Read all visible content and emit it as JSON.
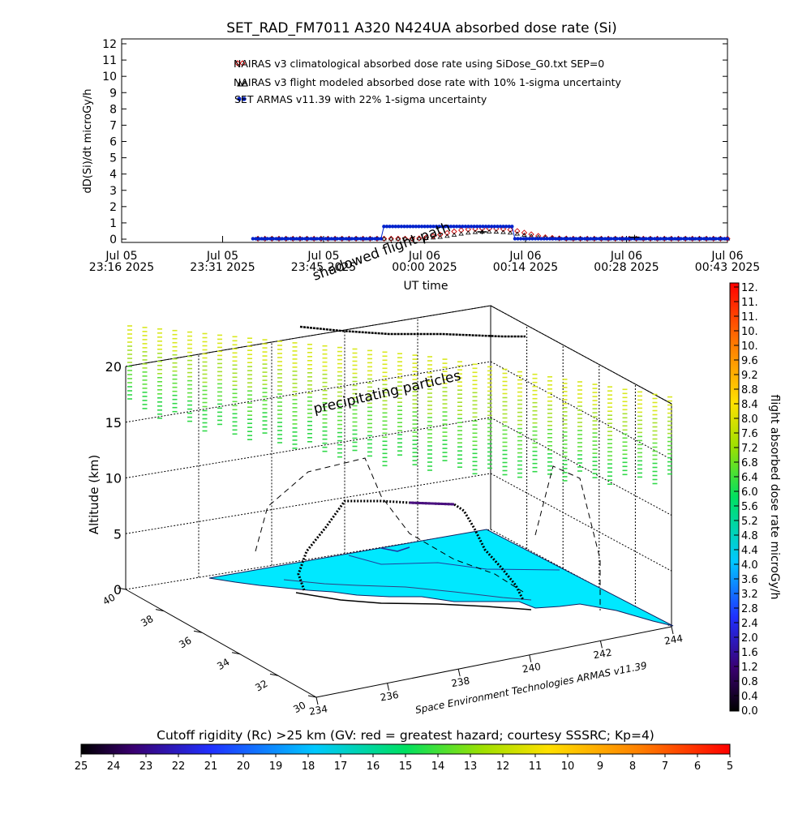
{
  "chart_data": [
    {
      "type": "scatter",
      "title": "SET_RAD_FM7011  A320 N424UA absorbed dose rate (Si)",
      "ylabel": "dD(Si)/dt microGy/h",
      "xlabel": "UT time",
      "ylim": [
        0,
        12
      ],
      "y_ticks": [
        "0",
        "1",
        "2",
        "3",
        "4",
        "5",
        "6",
        "7",
        "8",
        "9",
        "10",
        "11",
        "12"
      ],
      "x_ticks": [
        {
          "date": "Jul 05",
          "time": "23:16 2025"
        },
        {
          "date": "Jul 05",
          "time": "23:31 2025"
        },
        {
          "date": "Jul 05",
          "time": "23:45 2025"
        },
        {
          "date": "Jul 06",
          "time": "00:00 2025"
        },
        {
          "date": "Jul 06",
          "time": "00:14 2025"
        },
        {
          "date": "Jul 06",
          "time": "00:28 2025"
        },
        {
          "date": "Jul 06",
          "time": "00:43 2025"
        }
      ],
      "legend": [
        "NAIRAS v3 climatological absorbed dose rate using SiDose_G0.txt SEP=0",
        "NAIRAS v3 flight modeled absorbed dose rate with 10% 1-sigma uncertainty",
        "SET ARMAS v11.39 with 22% 1-sigma uncertainty"
      ],
      "legend_position": "top-center",
      "series": [
        {
          "name": "NAIRAS v3 climatological absorbed dose rate using SiDose_G0.txt SEP=0",
          "color": "#cc0000",
          "marker": "diamond",
          "x_range_ticks": [
            1.35,
            6.0
          ],
          "values": [
            0.03,
            0.03,
            0.03,
            0.03,
            0.03,
            0.03,
            0.03,
            0.03,
            0.03,
            0.03,
            0.03,
            0.03,
            0.03,
            0.03,
            0.03,
            0.03,
            0.03,
            0.03,
            0.03,
            0.03,
            0.03,
            0.03,
            0.03,
            0.05,
            0.1,
            0.18,
            0.28,
            0.38,
            0.47,
            0.55,
            0.6,
            0.63,
            0.65,
            0.65,
            0.64,
            0.62,
            0.58,
            0.5,
            0.4,
            0.3,
            0.2,
            0.12,
            0.08,
            0.05,
            0.04,
            0.03,
            0.03,
            0.03,
            0.03,
            0.03,
            0.03,
            0.03,
            0.03,
            0.03,
            0.03,
            0.03,
            0.03,
            0.03,
            0.03,
            0.03,
            0.03,
            0.03,
            0.03,
            0.03,
            0.03,
            0.03,
            0.03,
            0.03
          ]
        },
        {
          "name": "NAIRAS v3 flight modeled absorbed dose rate with 10% 1-sigma uncertainty",
          "color": "#000000",
          "marker": "triangle",
          "x_range_ticks": [
            1.35,
            6.0
          ],
          "values": [
            0.02,
            0.02,
            0.02,
            0.02,
            0.02,
            0.02,
            0.02,
            0.02,
            0.02,
            0.02,
            0.02,
            0.02,
            0.02,
            0.02,
            0.02,
            0.02,
            0.02,
            0.02,
            0.02,
            0.02,
            0.02,
            0.02,
            0.02,
            0.03,
            0.05,
            0.08,
            0.12,
            0.18,
            0.25,
            0.32,
            0.38,
            0.42,
            0.44,
            0.45,
            0.44,
            0.42,
            0.38,
            0.32,
            0.25,
            0.18,
            0.12,
            0.08,
            0.05,
            0.03,
            0.02,
            0.02,
            0.02,
            0.02,
            0.02,
            0.02,
            0.02,
            0.02,
            0.02,
            0.02,
            0.02,
            0.02,
            0.02,
            0.02,
            0.02,
            0.02,
            0.02,
            0.02,
            0.02,
            0.02,
            0.02,
            0.02,
            0.02,
            0.02
          ]
        },
        {
          "name": "SET ARMAS v11.39 with 22% 1-sigma uncertainty",
          "color": "#0022cc",
          "marker": "circle",
          "x_range_ticks": [
            1.3,
            6.0
          ],
          "values": [
            0.03,
            0.03,
            0.03,
            0.03,
            0.03,
            0.03,
            0.03,
            0.03,
            0.03,
            0.03,
            0.03,
            0.03,
            0.03,
            0.03,
            0.03,
            0.03,
            0.03,
            0.03,
            0.03,
            0.03,
            0.03,
            0.03,
            0.03,
            0.03,
            0.03,
            0.03,
            0.03,
            0.03,
            0.03,
            0.03,
            0.03,
            0.03,
            0.03,
            0.03,
            0.03,
            0.03,
            0.03,
            0.03,
            0.03,
            0.03,
            0.03,
            0.03,
            0.03,
            0.03,
            0.03,
            0.78,
            0.78,
            0.78,
            0.78,
            0.78,
            0.78,
            0.78,
            0.78,
            0.78,
            0.78,
            0.78,
            0.78,
            0.78,
            0.78,
            0.78,
            0.78,
            0.78,
            0.78,
            0.78,
            0.78,
            0.78,
            0.78,
            0.78,
            0.78,
            0.78,
            0.78,
            0.78,
            0.78,
            0.78,
            0.78,
            0.78,
            0.78,
            0.78,
            0.78,
            0.78,
            0.78,
            0.78,
            0.78,
            0.78,
            0.78,
            0.78,
            0.78,
            0.78,
            0.78,
            0.78,
            0.03,
            0.03,
            0.03,
            0.03,
            0.03,
            0.03,
            0.03,
            0.03,
            0.03,
            0.03,
            0.03,
            0.03,
            0.03,
            0.03,
            0.03,
            0.03,
            0.03,
            0.03,
            0.03,
            0.03,
            0.03,
            0.03,
            0.03,
            0.03,
            0.03,
            0.03,
            0.03,
            0.03,
            0.03,
            0.03,
            0.03,
            0.03,
            0.03,
            0.03,
            0.03,
            0.03,
            0.03,
            0.03,
            0.03,
            0.03,
            0.03,
            0.03,
            0.03,
            0.03,
            0.03,
            0.03,
            0.03,
            0.03,
            0.03,
            0.03,
            0.03,
            0.03,
            0.03,
            0.03,
            0.03,
            0.03,
            0.03,
            0.03,
            0.03,
            0.03,
            0.03,
            0.03,
            0.03,
            0.03,
            0.03,
            0.03,
            0.03,
            0.03,
            0.03,
            0.03,
            0.03,
            0.03,
            0.03,
            0.03
          ]
        }
      ],
      "error_markers": [
        {
          "x_tick": 3.57,
          "value": 0.45
        },
        {
          "x_tick": 5.08,
          "value": 0.12
        }
      ],
      "grid": false
    },
    {
      "type": "3d-scatter",
      "zlabel": "Altitude (km)",
      "z_ticks": [
        "0",
        "5",
        "10",
        "15",
        "20"
      ],
      "zlim": [
        0,
        20
      ],
      "lat_ticks": [
        "40",
        "38",
        "36",
        "34",
        "32",
        "30"
      ],
      "lon_ticks": [
        "234",
        "236",
        "238",
        "240",
        "242",
        "244"
      ],
      "annotations": {
        "precipitating": "precipitating particles",
        "shadowed": "shadowed flight path",
        "credit": "Space Environment Technologies ARMAS v11.39"
      },
      "grid": true
    }
  ],
  "colorbar_right": {
    "label": "flight absorbed dose rate microGy/h",
    "ticks": [
      "0.0",
      "0.4",
      "0.8",
      "1.2",
      "1.6",
      "2.0",
      "2.4",
      "2.8",
      "3.2",
      "3.6",
      "4.0",
      "4.4",
      "4.8",
      "5.2",
      "5.6",
      "6.0",
      "6.4",
      "6.8",
      "7.2",
      "7.6",
      "8.0",
      "8.4",
      "8.8",
      "9.2",
      "9.6",
      "10.",
      "10.",
      "11.",
      "11.",
      "12."
    ]
  },
  "colorbar_bottom": {
    "label": "Cutoff rigidity (Rc) >25 km (GV: red = greatest hazard; courtesy SSSRC; Kp=4)",
    "ticks": [
      "25",
      "24",
      "23",
      "22",
      "21",
      "20",
      "19",
      "18",
      "17",
      "16",
      "15",
      "14",
      "13",
      "12",
      "11",
      "10",
      "9",
      "8",
      "7",
      "6",
      "5"
    ]
  },
  "colors": {
    "surface": "#00e8ff",
    "flight_path": "#000000",
    "nairas_climatological": "#cc0000",
    "armas": "#0022cc"
  }
}
